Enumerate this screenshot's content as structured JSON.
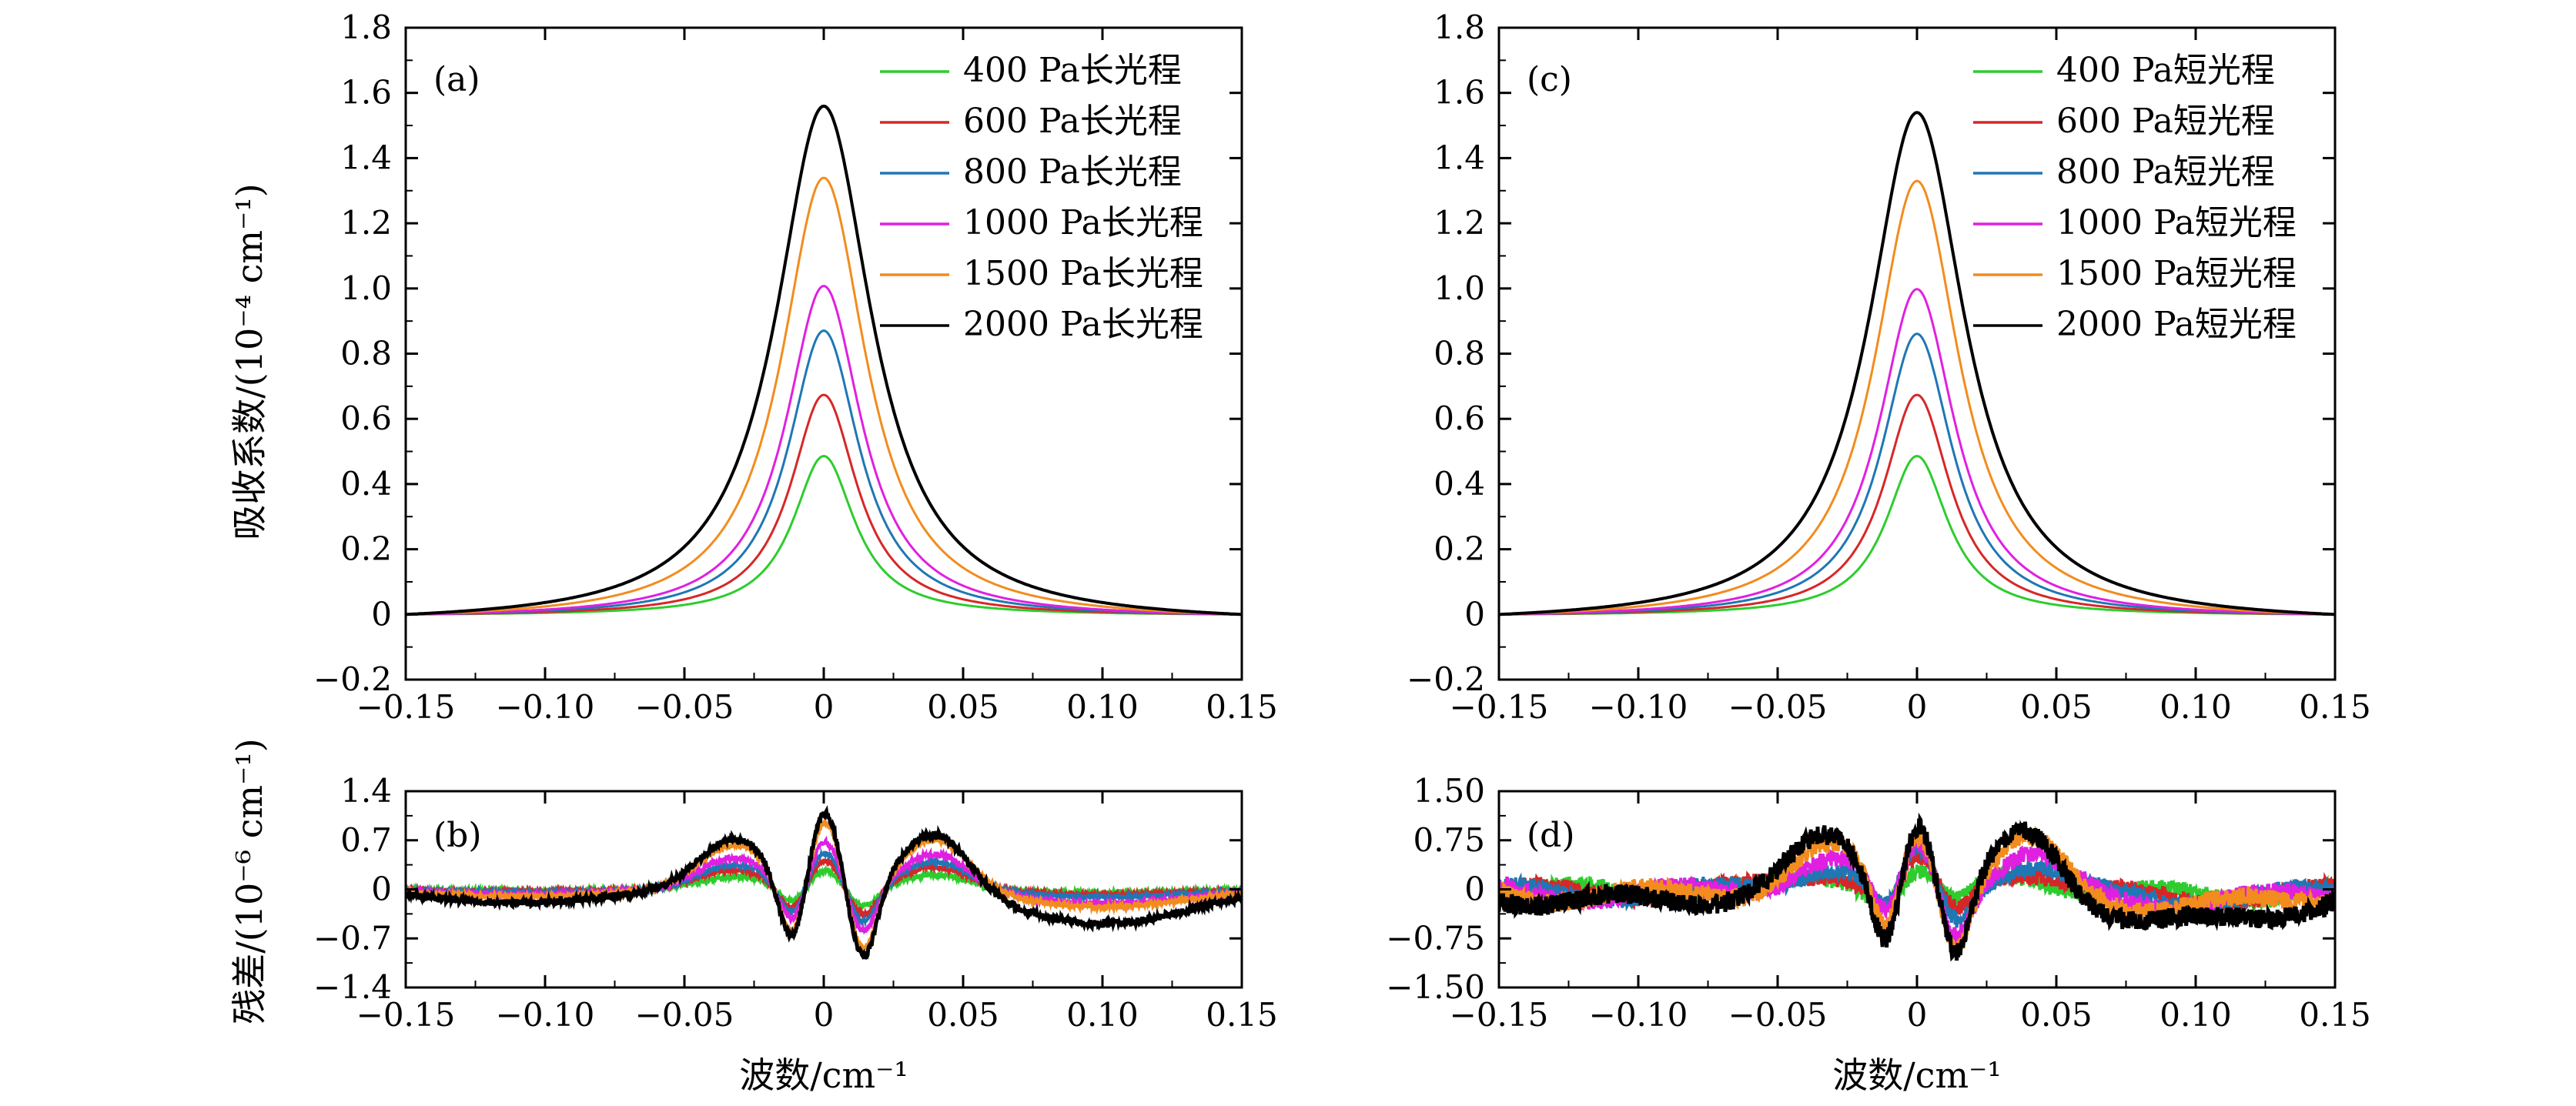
{
  "axis_titles": {
    "y_top": "吸收系数/(10⁻⁴ cm⁻¹)",
    "y_bottom": "残差/(10⁻⁶ cm⁻¹)",
    "x_left": "波数/cm⁻¹",
    "x_right": "波数/cm⁻¹"
  },
  "colors": {
    "400": "#2ecc2e",
    "600": "#d62728",
    "800": "#1f77b4",
    "1000": "#e020e0",
    "1500": "#f28c1e",
    "2000": "#000000"
  },
  "chart_data": [
    {
      "id": "a",
      "type": "line",
      "panel_label": "(a)",
      "xlim": [
        -0.15,
        0.15
      ],
      "ylim": [
        -0.2,
        1.8
      ],
      "xticks": [
        "−0.15",
        "−0.10",
        "−0.05",
        "0",
        "0.05",
        "0.10",
        "0.15"
      ],
      "xtick_values": [
        -0.15,
        -0.1,
        -0.05,
        0,
        0.05,
        0.1,
        0.15
      ],
      "yticks": [
        "−0.2",
        "0",
        "0.2",
        "0.4",
        "0.6",
        "0.8",
        "1.0",
        "1.2",
        "1.4",
        "1.6",
        "1.8"
      ],
      "ytick_values": [
        -0.2,
        0,
        0.2,
        0.4,
        0.6,
        0.8,
        1.0,
        1.2,
        1.4,
        1.6,
        1.8
      ],
      "legend_position": "top-right",
      "series": [
        {
          "name": "400 Pa长光程",
          "key": "400",
          "peak": 0.49,
          "hwhm": 0.0135
        },
        {
          "name": "600 Pa长光程",
          "key": "600",
          "peak": 0.68,
          "hwhm": 0.0145
        },
        {
          "name": "800 Pa长光程",
          "key": "800",
          "peak": 0.88,
          "hwhm": 0.0155
        },
        {
          "name": "1000 Pa长光程",
          "key": "1000",
          "peak": 1.02,
          "hwhm": 0.0165
        },
        {
          "name": "1500 Pa长光程",
          "key": "1500",
          "peak": 1.36,
          "hwhm": 0.0185
        },
        {
          "name": "2000 Pa长光程",
          "key": "2000",
          "peak": 1.59,
          "hwhm": 0.021
        }
      ]
    },
    {
      "id": "c",
      "type": "line",
      "panel_label": "(c)",
      "xlim": [
        -0.15,
        0.15
      ],
      "ylim": [
        -0.2,
        1.8
      ],
      "xticks": [
        "−0.15",
        "−0.10",
        "−0.05",
        "0",
        "0.05",
        "0.10",
        "0.15"
      ],
      "xtick_values": [
        -0.15,
        -0.1,
        -0.05,
        0,
        0.05,
        0.1,
        0.15
      ],
      "yticks": [
        "−0.2",
        "0",
        "0.2",
        "0.4",
        "0.6",
        "0.8",
        "1.0",
        "1.2",
        "1.4",
        "1.6",
        "1.8"
      ],
      "ytick_values": [
        -0.2,
        0,
        0.2,
        0.4,
        0.6,
        0.8,
        1.0,
        1.2,
        1.4,
        1.6,
        1.8
      ],
      "legend_position": "top-right",
      "series": [
        {
          "name": "400 Pa短光程",
          "key": "400",
          "peak": 0.49,
          "hwhm": 0.0135
        },
        {
          "name": "600 Pa短光程",
          "key": "600",
          "peak": 0.68,
          "hwhm": 0.0145
        },
        {
          "name": "800 Pa短光程",
          "key": "800",
          "peak": 0.87,
          "hwhm": 0.0155
        },
        {
          "name": "1000 Pa短光程",
          "key": "1000",
          "peak": 1.01,
          "hwhm": 0.0165
        },
        {
          "name": "1500 Pa短光程",
          "key": "1500",
          "peak": 1.35,
          "hwhm": 0.0185
        },
        {
          "name": "2000 Pa短光程",
          "key": "2000",
          "peak": 1.57,
          "hwhm": 0.021
        }
      ]
    },
    {
      "id": "b",
      "type": "line",
      "panel_label": "(b)",
      "xlim": [
        -0.15,
        0.15
      ],
      "ylim": [
        -1.4,
        1.4
      ],
      "xticks": [
        "−0.15",
        "−0.10",
        "−0.05",
        "0",
        "0.05",
        "0.10",
        "0.15"
      ],
      "xtick_values": [
        -0.15,
        -0.1,
        -0.05,
        0,
        0.05,
        0.1,
        0.15
      ],
      "yticks": [
        "−1.4",
        "−0.7",
        "0",
        "0.7",
        "1.4"
      ],
      "ytick_values": [
        -1.4,
        -0.7,
        0,
        0.7,
        1.4
      ],
      "series": [
        {
          "key": "400",
          "scale": 0.25,
          "wing": 0.05,
          "noise": 0.03
        },
        {
          "key": "600",
          "scale": 0.38,
          "wing": 0.08,
          "noise": 0.03
        },
        {
          "key": "800",
          "scale": 0.48,
          "wing": 0.12,
          "noise": 0.03
        },
        {
          "key": "1000",
          "scale": 0.62,
          "wing": 0.22,
          "noise": 0.04
        },
        {
          "key": "1500",
          "scale": 0.88,
          "wing": 0.28,
          "noise": 0.04
        },
        {
          "key": "2000",
          "scale": 1.0,
          "wing": 0.55,
          "noise": 0.05
        }
      ]
    },
    {
      "id": "d",
      "type": "line",
      "panel_label": "(d)",
      "xlim": [
        -0.15,
        0.15
      ],
      "ylim": [
        -1.5,
        1.5
      ],
      "xticks": [
        "−0.15",
        "−0.10",
        "−0.05",
        "0",
        "0.05",
        "0.10",
        "0.15"
      ],
      "xtick_values": [
        -0.15,
        -0.1,
        -0.05,
        0,
        0.05,
        0.1,
        0.15
      ],
      "yticks": [
        "−1.50",
        "−0.75",
        "0",
        "0.75",
        "1.50"
      ],
      "ytick_values": [
        -1.5,
        -0.75,
        0,
        0.75,
        1.5
      ],
      "series": [
        {
          "key": "400",
          "scale": 0.25,
          "wing": 0.1,
          "noise": 0.12
        },
        {
          "key": "600",
          "scale": 0.38,
          "wing": 0.15,
          "noise": 0.12
        },
        {
          "key": "800",
          "scale": 0.48,
          "wing": 0.18,
          "noise": 0.12
        },
        {
          "key": "1000",
          "scale": 0.62,
          "wing": 0.22,
          "noise": 0.13
        },
        {
          "key": "1500",
          "scale": 0.85,
          "wing": 0.3,
          "noise": 0.14
        },
        {
          "key": "2000",
          "scale": 1.0,
          "wing": 0.6,
          "noise": 0.15
        }
      ]
    }
  ]
}
